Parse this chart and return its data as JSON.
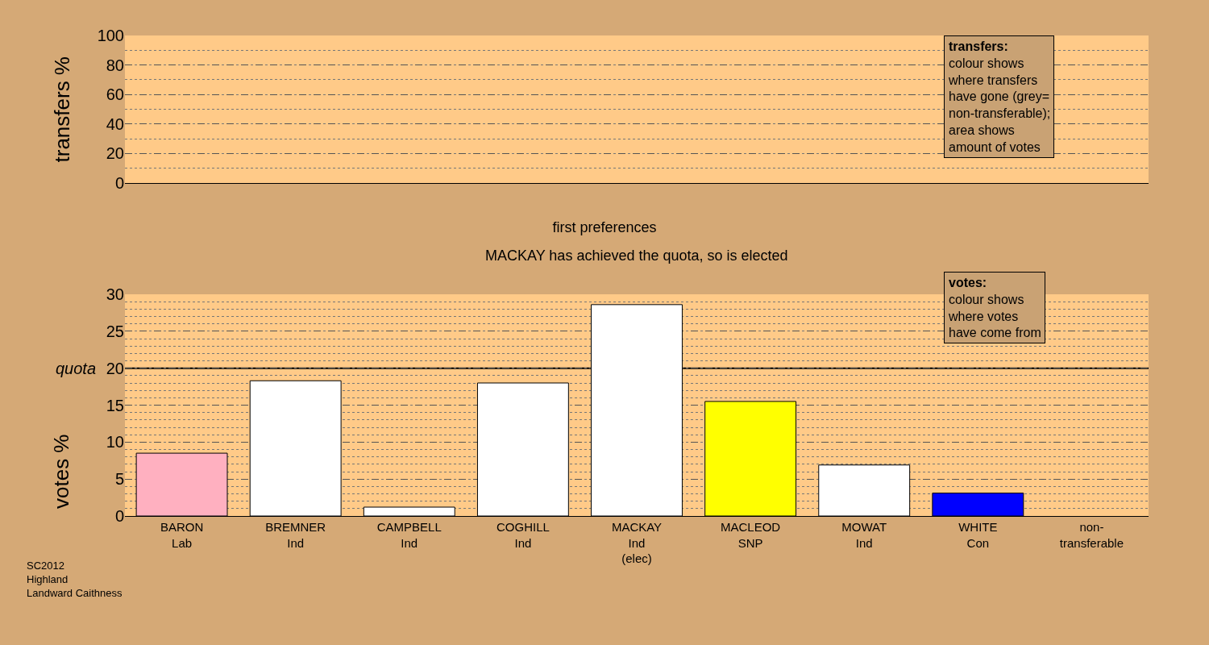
{
  "chart_data": [
    {
      "type": "bar",
      "ylabel": "transfers %",
      "categories": [
        null,
        null,
        null,
        null,
        null,
        null,
        null,
        null,
        null
      ],
      "values": [
        null,
        null,
        null,
        null,
        null,
        null,
        null,
        null,
        null
      ],
      "ylim": [
        0,
        100
      ],
      "yticks": [
        0,
        20,
        40,
        60,
        80,
        100
      ],
      "grid": "y",
      "tick_labels": "y",
      "annotations": [
        "transfers:",
        "colour shows\nwhere transfers\nhave gone (grey=\nnon-transferable);",
        "area shows\namount of votes"
      ]
    },
    {
      "type": "bar",
      "title": "first preferences",
      "subtitle": "MACKAY has achieved the quota, so is elected",
      "ylabel": "votes %",
      "categories": [
        "BARON\nLab",
        "BREMNER\nInd",
        "CAMPBELL\nInd",
        "COGHILL\nInd",
        "MACKAY\nInd\n(elec)",
        "MACLEOD\nSNP",
        "MOWAT\nInd",
        "WHITE\nCon",
        "non-\ntransferable"
      ],
      "values": [
        8.5,
        18.3,
        1.2,
        18.0,
        28.6,
        15.5,
        6.9,
        3.1,
        null
      ],
      "colors": [
        "#ffb0c0",
        "#ffffff",
        "#ffffff",
        "#ffffff",
        "#ffffff",
        "#ffff00",
        "#ffffff",
        "#0000ff",
        "#ffffff"
      ],
      "ylim": [
        0,
        30
      ],
      "yticks": [
        0,
        5,
        10,
        15,
        20,
        25,
        30
      ],
      "grid": "y",
      "ref_lines": [
        {
          "axis": "y",
          "value": 20,
          "label": "quota",
          "color": "#000000"
        }
      ],
      "annotations": [
        "votes:",
        "colour shows\nwhere votes\nhave come from",
        "SC2012\nHighland\nLandward Caithness"
      ]
    }
  ]
}
